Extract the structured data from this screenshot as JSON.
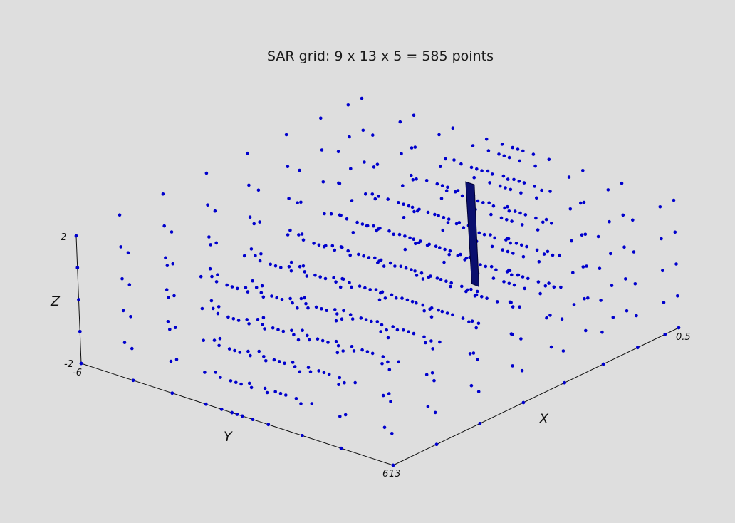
{
  "chart_data": {
    "type": "scatter",
    "title": "SAR grid: 9 x 13 x 5 = 585 points",
    "projection": "3d",
    "x": {
      "label": "X",
      "tick_labels": [
        "13",
        "0.5"
      ],
      "values": [
        13.0,
        11.1,
        9.2,
        7.3,
        5.5,
        3.8,
        2.3,
        1.1,
        0.5
      ]
    },
    "y": {
      "label": "Y",
      "tick_labels": [
        "-6",
        "6"
      ],
      "values": [
        -6,
        -4,
        -2.5,
        -1.2,
        -0.6,
        -0.2,
        0,
        0.2,
        0.6,
        1.2,
        2.5,
        4,
        6
      ]
    },
    "z": {
      "label": "Z",
      "tick_labels": [
        "2",
        "-2"
      ],
      "values": [
        -2,
        -1,
        0,
        1,
        2
      ]
    },
    "point_count": 585,
    "marker_color": "#0000cc",
    "highlight_color": "#0a0f6e",
    "background": "#dedede"
  }
}
